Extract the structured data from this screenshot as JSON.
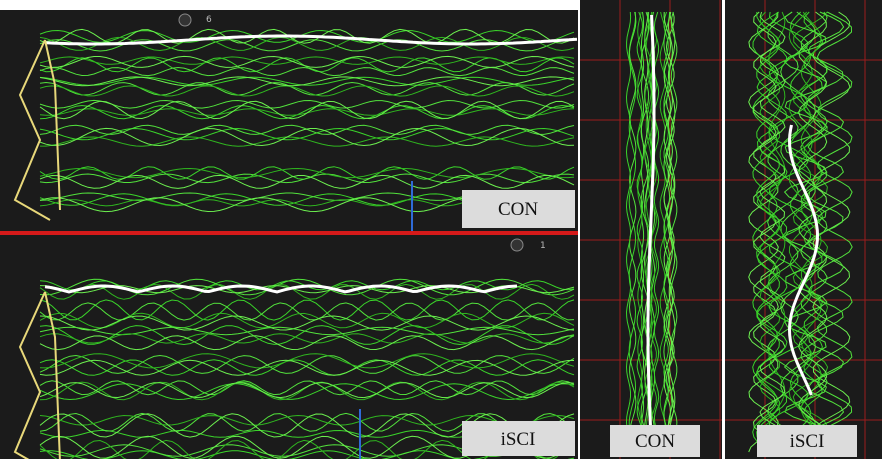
{
  "panels": [
    {
      "label": "CON",
      "marker": "6"
    },
    {
      "label": "iSCI",
      "marker": "1"
    },
    {
      "label": "CON"
    },
    {
      "label": "iSCI"
    }
  ]
}
